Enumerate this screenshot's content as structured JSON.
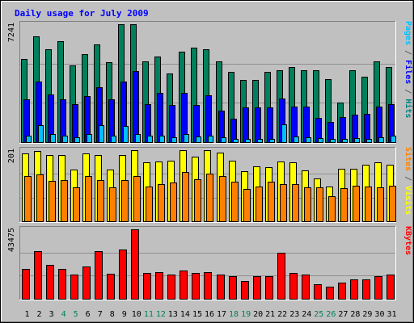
{
  "chart_data": {
    "type": "bar",
    "title": "Daily usage for July 2009",
    "categories": [
      "1",
      "2",
      "3",
      "4",
      "5",
      "6",
      "7",
      "8",
      "9",
      "10",
      "11",
      "12",
      "13",
      "14",
      "15",
      "16",
      "17",
      "18",
      "19",
      "20",
      "21",
      "22",
      "23",
      "24",
      "25",
      "26",
      "27",
      "28",
      "29",
      "30",
      "31"
    ],
    "weekend_days": [
      "4",
      "5",
      "11",
      "12",
      "18",
      "19",
      "25",
      "26"
    ],
    "panels": [
      {
        "max_label": "7241",
        "ylim": [
          0,
          7241
        ],
        "side_label_parts": [
          {
            "text": "Pages",
            "color": "#00c0ff"
          },
          {
            "text": " / ",
            "color": "#606060"
          },
          {
            "text": "Files",
            "color": "#0000ff"
          },
          {
            "text": " / ",
            "color": "#606060"
          },
          {
            "text": "Hits",
            "color": "#008080"
          }
        ],
        "series": [
          {
            "name": "Hits",
            "color": "#00805c",
            "values": [
              5100,
              6500,
              5700,
              6200,
              4700,
              5400,
              6000,
              4900,
              7241,
              7241,
              4950,
              5250,
              4200,
              5550,
              5800,
              5700,
              4950,
              4300,
              3800,
              3800,
              4300,
              4400,
              4600,
              4400,
              4400,
              3850,
              2450,
              4400,
              4000,
              4950,
              4600
            ]
          },
          {
            "name": "Files",
            "color": "#0000ff",
            "values": [
              2650,
              3700,
              2950,
              2650,
              2350,
              2850,
              3350,
              2650,
              3700,
              4350,
              2350,
              3050,
              2300,
              3050,
              2300,
              2900,
              1950,
              1450,
              2150,
              2150,
              2150,
              2700,
              2200,
              2200,
              1500,
              1250,
              1550,
              1700,
              1750,
              2200,
              2350
            ]
          },
          {
            "name": "Pages",
            "color": "#00c0ff",
            "values": [
              380,
              1050,
              520,
              380,
              320,
              520,
              1030,
              380,
              1000,
              520,
              420,
              380,
              310,
              520,
              340,
              380,
              310,
              220,
              210,
              220,
              220,
              1070,
              370,
              320,
              260,
              200,
              220,
              250,
              220,
              320,
              380
            ]
          }
        ]
      },
      {
        "max_label": "201",
        "ylim": [
          0,
          201
        ],
        "side_label_parts": [
          {
            "text": "Sites",
            "color": "#ff8000"
          },
          {
            "text": " / ",
            "color": "#606060"
          },
          {
            "text": "Visits",
            "color": "#ffff00"
          }
        ],
        "series": [
          {
            "name": "Visits",
            "color": "#ffff00",
            "values": [
              192,
              199,
              187,
              188,
              147,
              192,
              187,
              147,
              188,
              201,
              166,
              168,
              172,
              201,
              182,
              201,
              195,
              172,
              142,
              156,
              154,
              168,
              166,
              144,
              121,
              98,
              148,
              148,
              159,
              166,
              160
            ]
          },
          {
            "name": "Sites",
            "color": "#ff8000",
            "values": [
              127,
              132,
              115,
              117,
              96,
              127,
              117,
              97,
              116,
              128,
              98,
              106,
              110,
              139,
              119,
              134,
              127,
              112,
              92,
              98,
              112,
              106,
              105,
              95,
              95,
              70,
              93,
              100,
              98,
              97,
              101
            ]
          }
        ]
      },
      {
        "max_label": "43475",
        "ylim": [
          0,
          43475
        ],
        "side_label_parts": [
          {
            "text": "KBytes",
            "color": "#ff0000"
          }
        ],
        "series": [
          {
            "name": "KBytes",
            "color": "#ff0000",
            "values": [
              18800,
              30000,
              21300,
              18800,
              15200,
              20400,
              30000,
              15600,
              30800,
              43475,
              16000,
              16800,
              15200,
              17600,
              16000,
              16800,
              15200,
              14000,
              11200,
              14000,
              14400,
              28800,
              16000,
              15200,
              9200,
              7600,
              10000,
              12000,
              12000,
              14400,
              15200
            ]
          }
        ]
      }
    ]
  }
}
